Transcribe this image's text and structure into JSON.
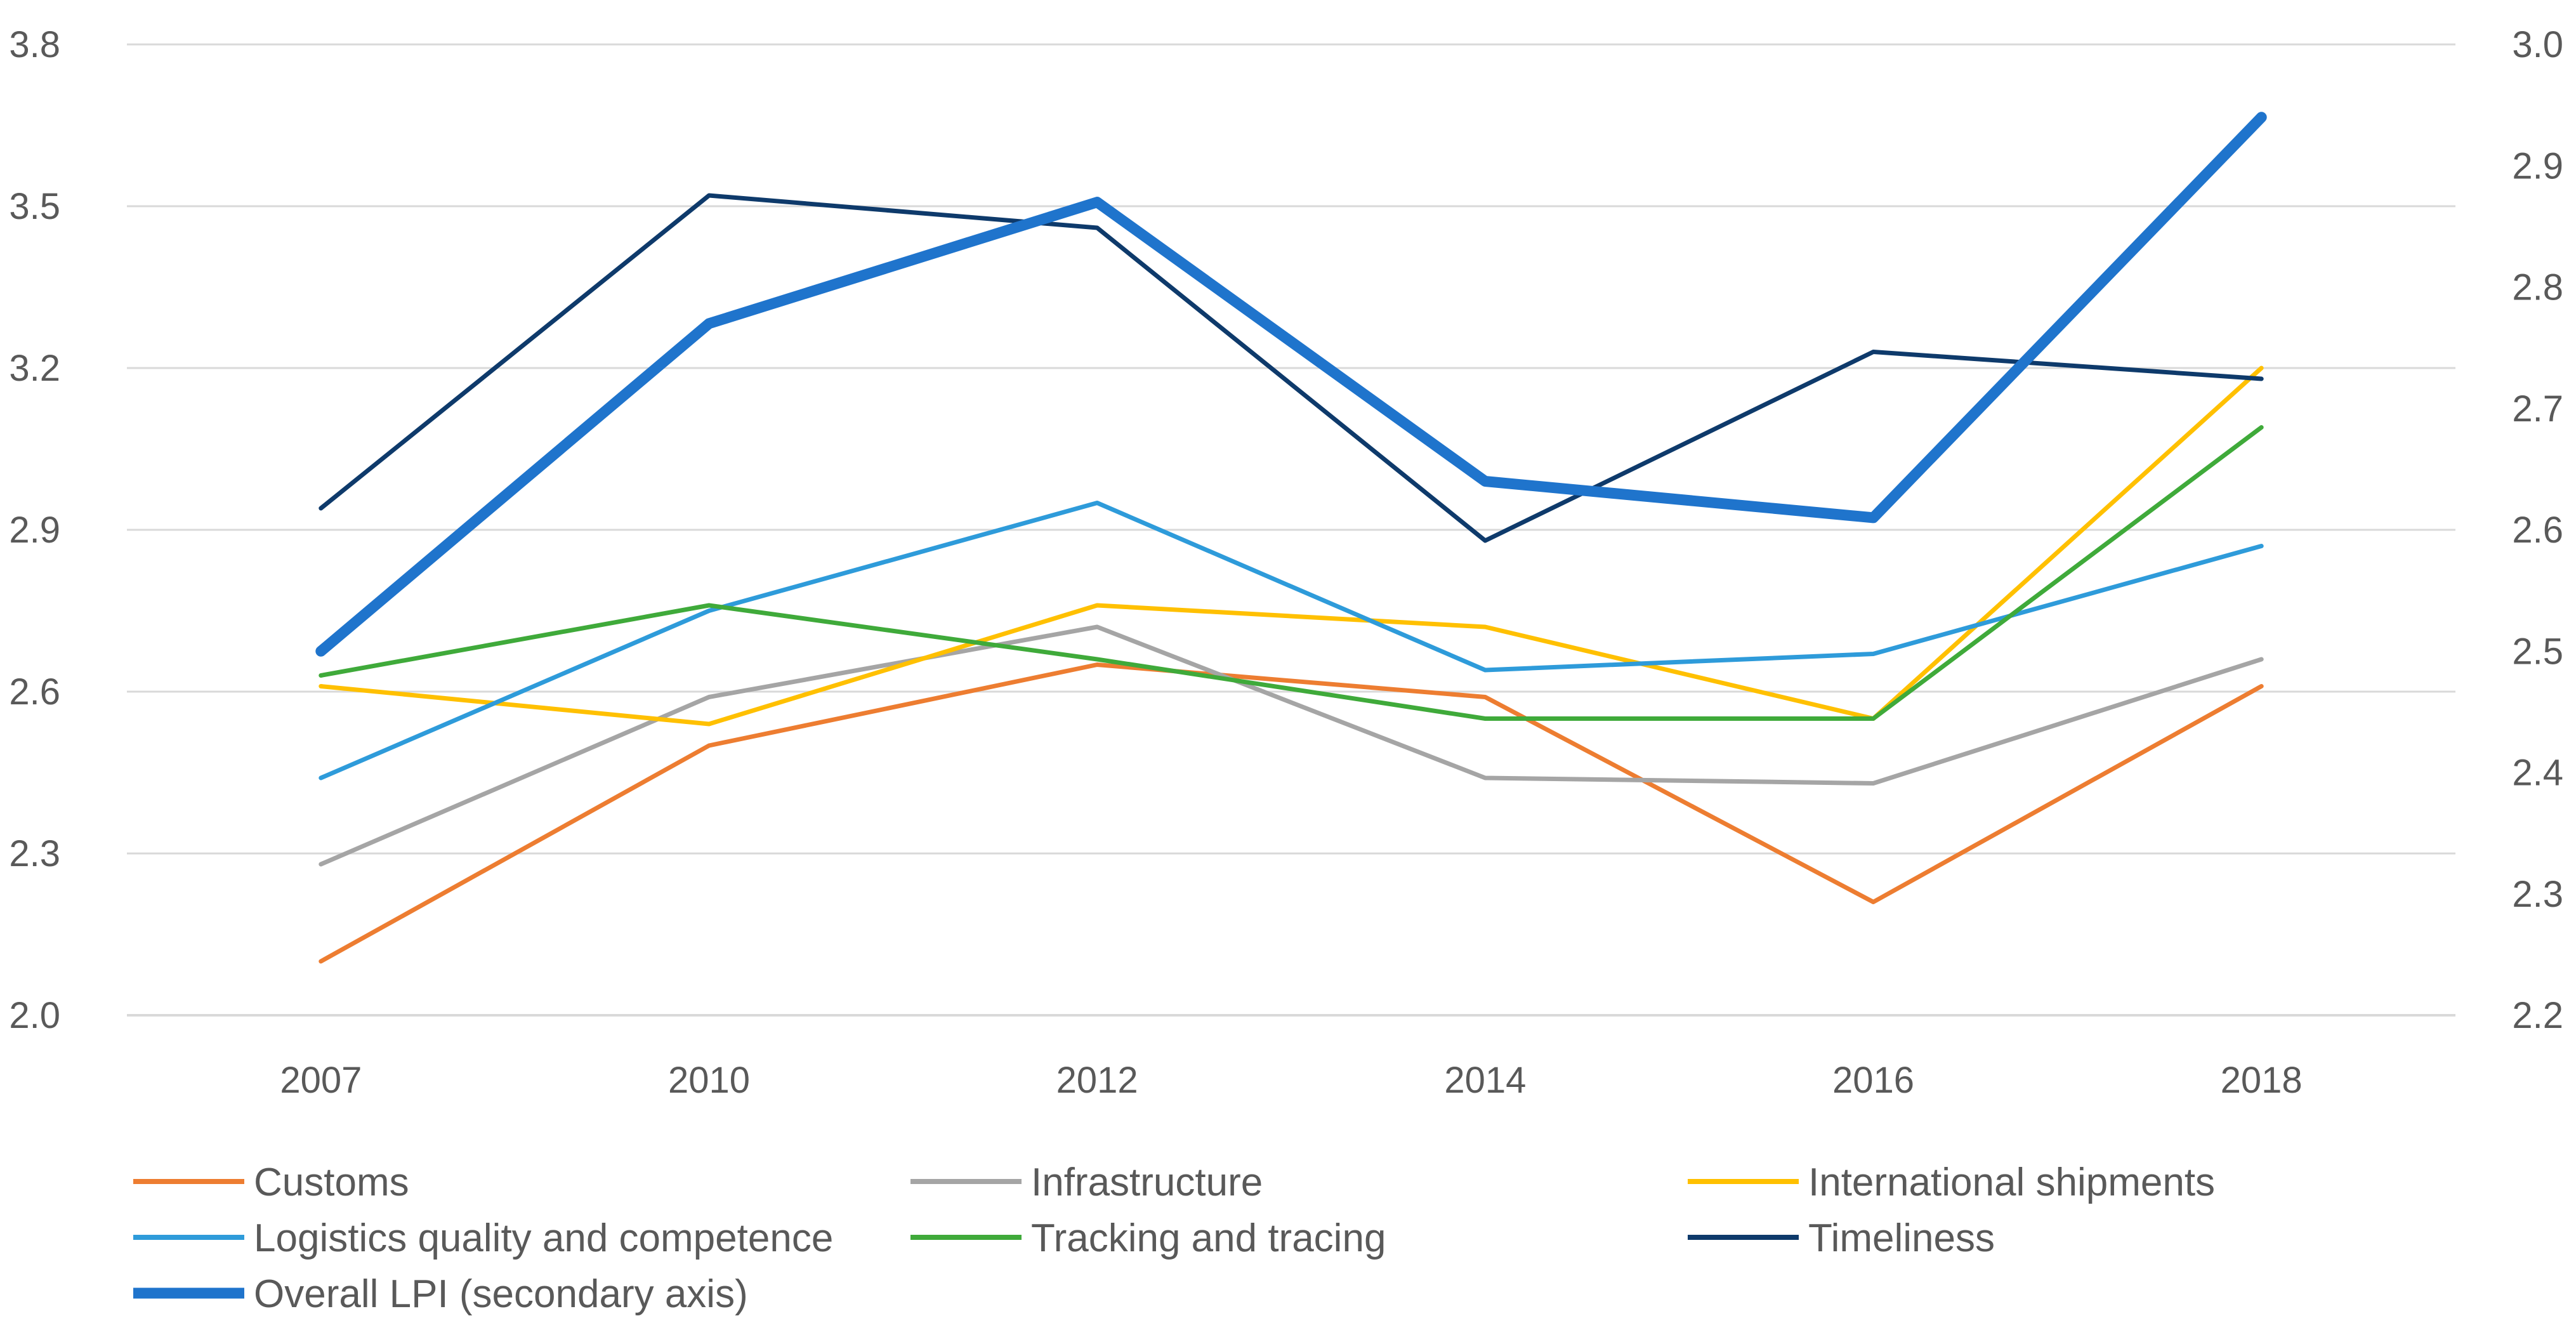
{
  "chart_data": {
    "type": "line",
    "title": "",
    "xlabel": "",
    "ylabel": "",
    "categories": [
      "2007",
      "2010",
      "2012",
      "2014",
      "2016",
      "2018"
    ],
    "ylim": [
      2.0,
      3.8
    ],
    "y2lim": [
      2.2,
      3.0
    ],
    "y_ticks": [
      "2.0",
      "2.3",
      "2.6",
      "2.9",
      "3.2",
      "3.5",
      "3.8"
    ],
    "y2_ticks": [
      "2.2",
      "2.3",
      "2.4",
      "2.5",
      "2.6",
      "2.7",
      "2.8",
      "2.9",
      "3.0"
    ],
    "grid": true,
    "legend_position": "bottom",
    "series": [
      {
        "name": "Customs",
        "color": "#ED7D31",
        "axis": "primary",
        "values": [
          2.1,
          2.5,
          2.65,
          2.59,
          2.21,
          2.61
        ]
      },
      {
        "name": "Infrastructure",
        "color": "#A5A5A5",
        "axis": "primary",
        "values": [
          2.28,
          2.59,
          2.72,
          2.44,
          2.43,
          2.66
        ]
      },
      {
        "name": "International shipments",
        "color": "#FFC000",
        "axis": "primary",
        "values": [
          2.61,
          2.54,
          2.76,
          2.72,
          2.55,
          3.2
        ]
      },
      {
        "name": "Logistics quality and competence",
        "color": "#2E9BDA",
        "axis": "primary",
        "values": [
          2.44,
          2.75,
          2.95,
          2.64,
          2.67,
          2.87
        ]
      },
      {
        "name": "Tracking and tracing",
        "color": "#3FAA3A",
        "axis": "primary",
        "values": [
          2.63,
          2.76,
          2.66,
          2.55,
          2.55,
          3.09
        ]
      },
      {
        "name": "Timeliness",
        "color": "#0E3A6B",
        "axis": "primary",
        "values": [
          2.94,
          3.52,
          3.46,
          2.88,
          3.23,
          3.18
        ]
      },
      {
        "name": "Overall LPI (secondary axis)",
        "color": "#1F74CC",
        "axis": "secondary",
        "values": [
          2.5,
          2.77,
          2.87,
          2.64,
          2.61,
          2.94
        ]
      }
    ]
  }
}
